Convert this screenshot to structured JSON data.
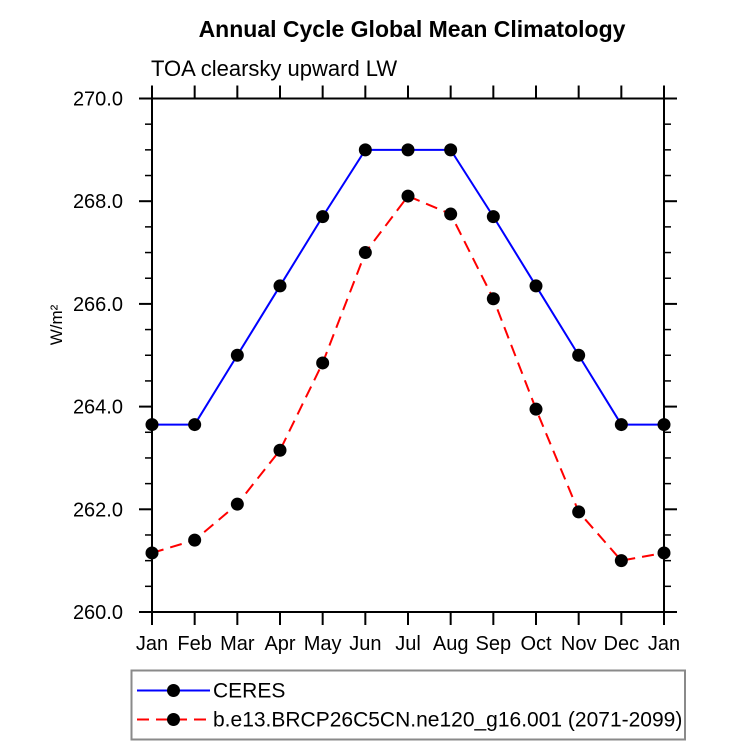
{
  "header": {
    "title": "Annual Cycle Global Mean Climatology",
    "subtitle": "TOA clearsky upward LW"
  },
  "chart_data": {
    "type": "line",
    "x_categories": [
      "Jan",
      "Feb",
      "Mar",
      "Apr",
      "May",
      "Jun",
      "Jul",
      "Aug",
      "Sep",
      "Oct",
      "Nov",
      "Dec",
      "Jan"
    ],
    "ylabel": "W/m²",
    "ylim": [
      260.0,
      270.0
    ],
    "ytick_major": [
      260.0,
      262.0,
      264.0,
      266.0,
      268.0,
      270.0
    ],
    "ytick_minor_step": 0.5,
    "grid": false,
    "axis_color": "#000000",
    "legend_position": "bottom-left",
    "legend_border_color": "#8a8a8a",
    "series": [
      {
        "name": "CERES",
        "color": "#0000ff",
        "line_style": "solid",
        "marker": "black-dot",
        "marker_color": "#000000",
        "values": [
          263.65,
          263.65,
          265.0,
          266.35,
          267.7,
          269.0,
          269.0,
          269.0,
          267.7,
          266.35,
          265.0,
          263.65,
          263.65
        ]
      },
      {
        "name": "b.e13.BRCP26C5CN.ne120_g16.001 (2071-2099)",
        "color": "#ff0000",
        "line_style": "dashed",
        "marker": "black-dot",
        "marker_color": "#000000",
        "values": [
          261.15,
          261.4,
          262.1,
          263.15,
          264.85,
          267.0,
          268.1,
          267.75,
          266.1,
          263.95,
          261.95,
          261.0,
          261.15
        ]
      }
    ]
  }
}
